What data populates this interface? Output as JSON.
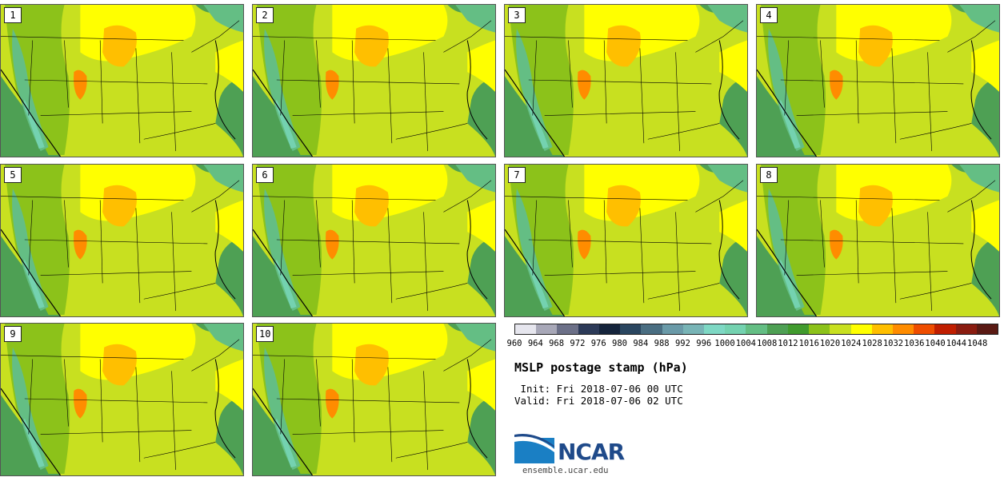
{
  "stamps": [
    {
      "label": "1"
    },
    {
      "label": "2"
    },
    {
      "label": "3"
    },
    {
      "label": "4"
    },
    {
      "label": "5"
    },
    {
      "label": "6"
    },
    {
      "label": "7"
    },
    {
      "label": "8"
    },
    {
      "label": "9"
    },
    {
      "label": "10"
    }
  ],
  "colorbar": {
    "colors": [
      "#e6e6ee",
      "#a8a8b8",
      "#6c7088",
      "#2c3a58",
      "#15243c",
      "#2a4660",
      "#4a6e82",
      "#6a9aa8",
      "#78b4b6",
      "#7ed8c4",
      "#74d2b0",
      "#64be84",
      "#4ea054",
      "#419b2e",
      "#8cc21a",
      "#c8e020",
      "#ffff00",
      "#ffbf00",
      "#ff8c00",
      "#ee4d00",
      "#c01e00",
      "#8a1c10",
      "#5a1a14"
    ],
    "ticks": [
      "960",
      "964",
      "968",
      "972",
      "976",
      "980",
      "984",
      "988",
      "992",
      "996",
      "1000",
      "1004",
      "1008",
      "1012",
      "1016",
      "1020",
      "1024",
      "1028",
      "1032",
      "1036",
      "1040",
      "1044",
      "1048"
    ]
  },
  "title": "MSLP postage stamp (hPa)",
  "init": " Init: Fri 2018-07-06 00 UTC",
  "valid": "Valid: Fri 2018-07-06 02 UTC",
  "logo": {
    "text": "NCAR",
    "site": "ensemble.ucar.edu"
  },
  "map_colors": {
    "ocean": "#4ea054",
    "land": "#c8e020",
    "high": "#ffff00",
    "mountain": "#8cc21a",
    "deep": "#64be84",
    "peak": "#74d2b0",
    "anticyclone": "#ffbf00",
    "heat": "#ff8c00",
    "border": "#000000"
  }
}
